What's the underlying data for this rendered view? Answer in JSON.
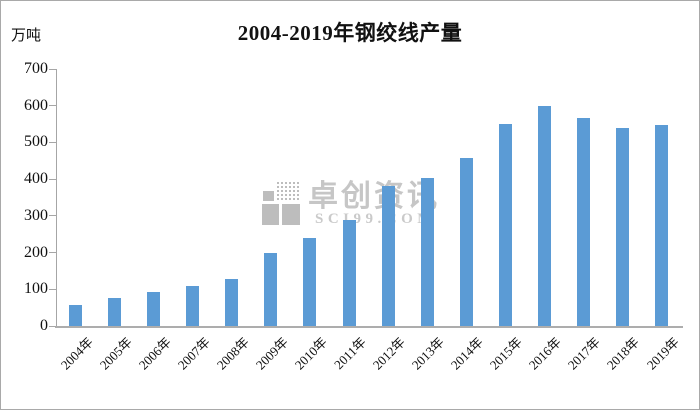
{
  "chart_data": {
    "type": "bar",
    "title": "2004-2019年钢绞线产量",
    "unit": "万吨",
    "xlabel": "",
    "ylabel": "万吨",
    "categories": [
      "2004年",
      "2005年",
      "2006年",
      "2007年",
      "2008年",
      "2009年",
      "2010年",
      "2011年",
      "2012年",
      "2013年",
      "2014年",
      "2015年",
      "2016年",
      "2017年",
      "2018年",
      "2019年"
    ],
    "values": [
      58,
      77,
      92,
      109,
      128,
      198,
      239,
      290,
      382,
      402,
      458,
      549,
      600,
      567,
      540,
      548
    ],
    "ylim": [
      0,
      700
    ],
    "y_ticks": [
      0,
      100,
      200,
      300,
      400,
      500,
      600,
      700
    ],
    "grid": false,
    "legend": "none",
    "bar_color": "#5B9BD5",
    "axis_color": "#A6A6A6"
  },
  "watermark": {
    "logo": "sci99-squares-logo",
    "text": "卓创资讯",
    "subtext": "SCI99.COM",
    "color": "#C6C6C6"
  }
}
